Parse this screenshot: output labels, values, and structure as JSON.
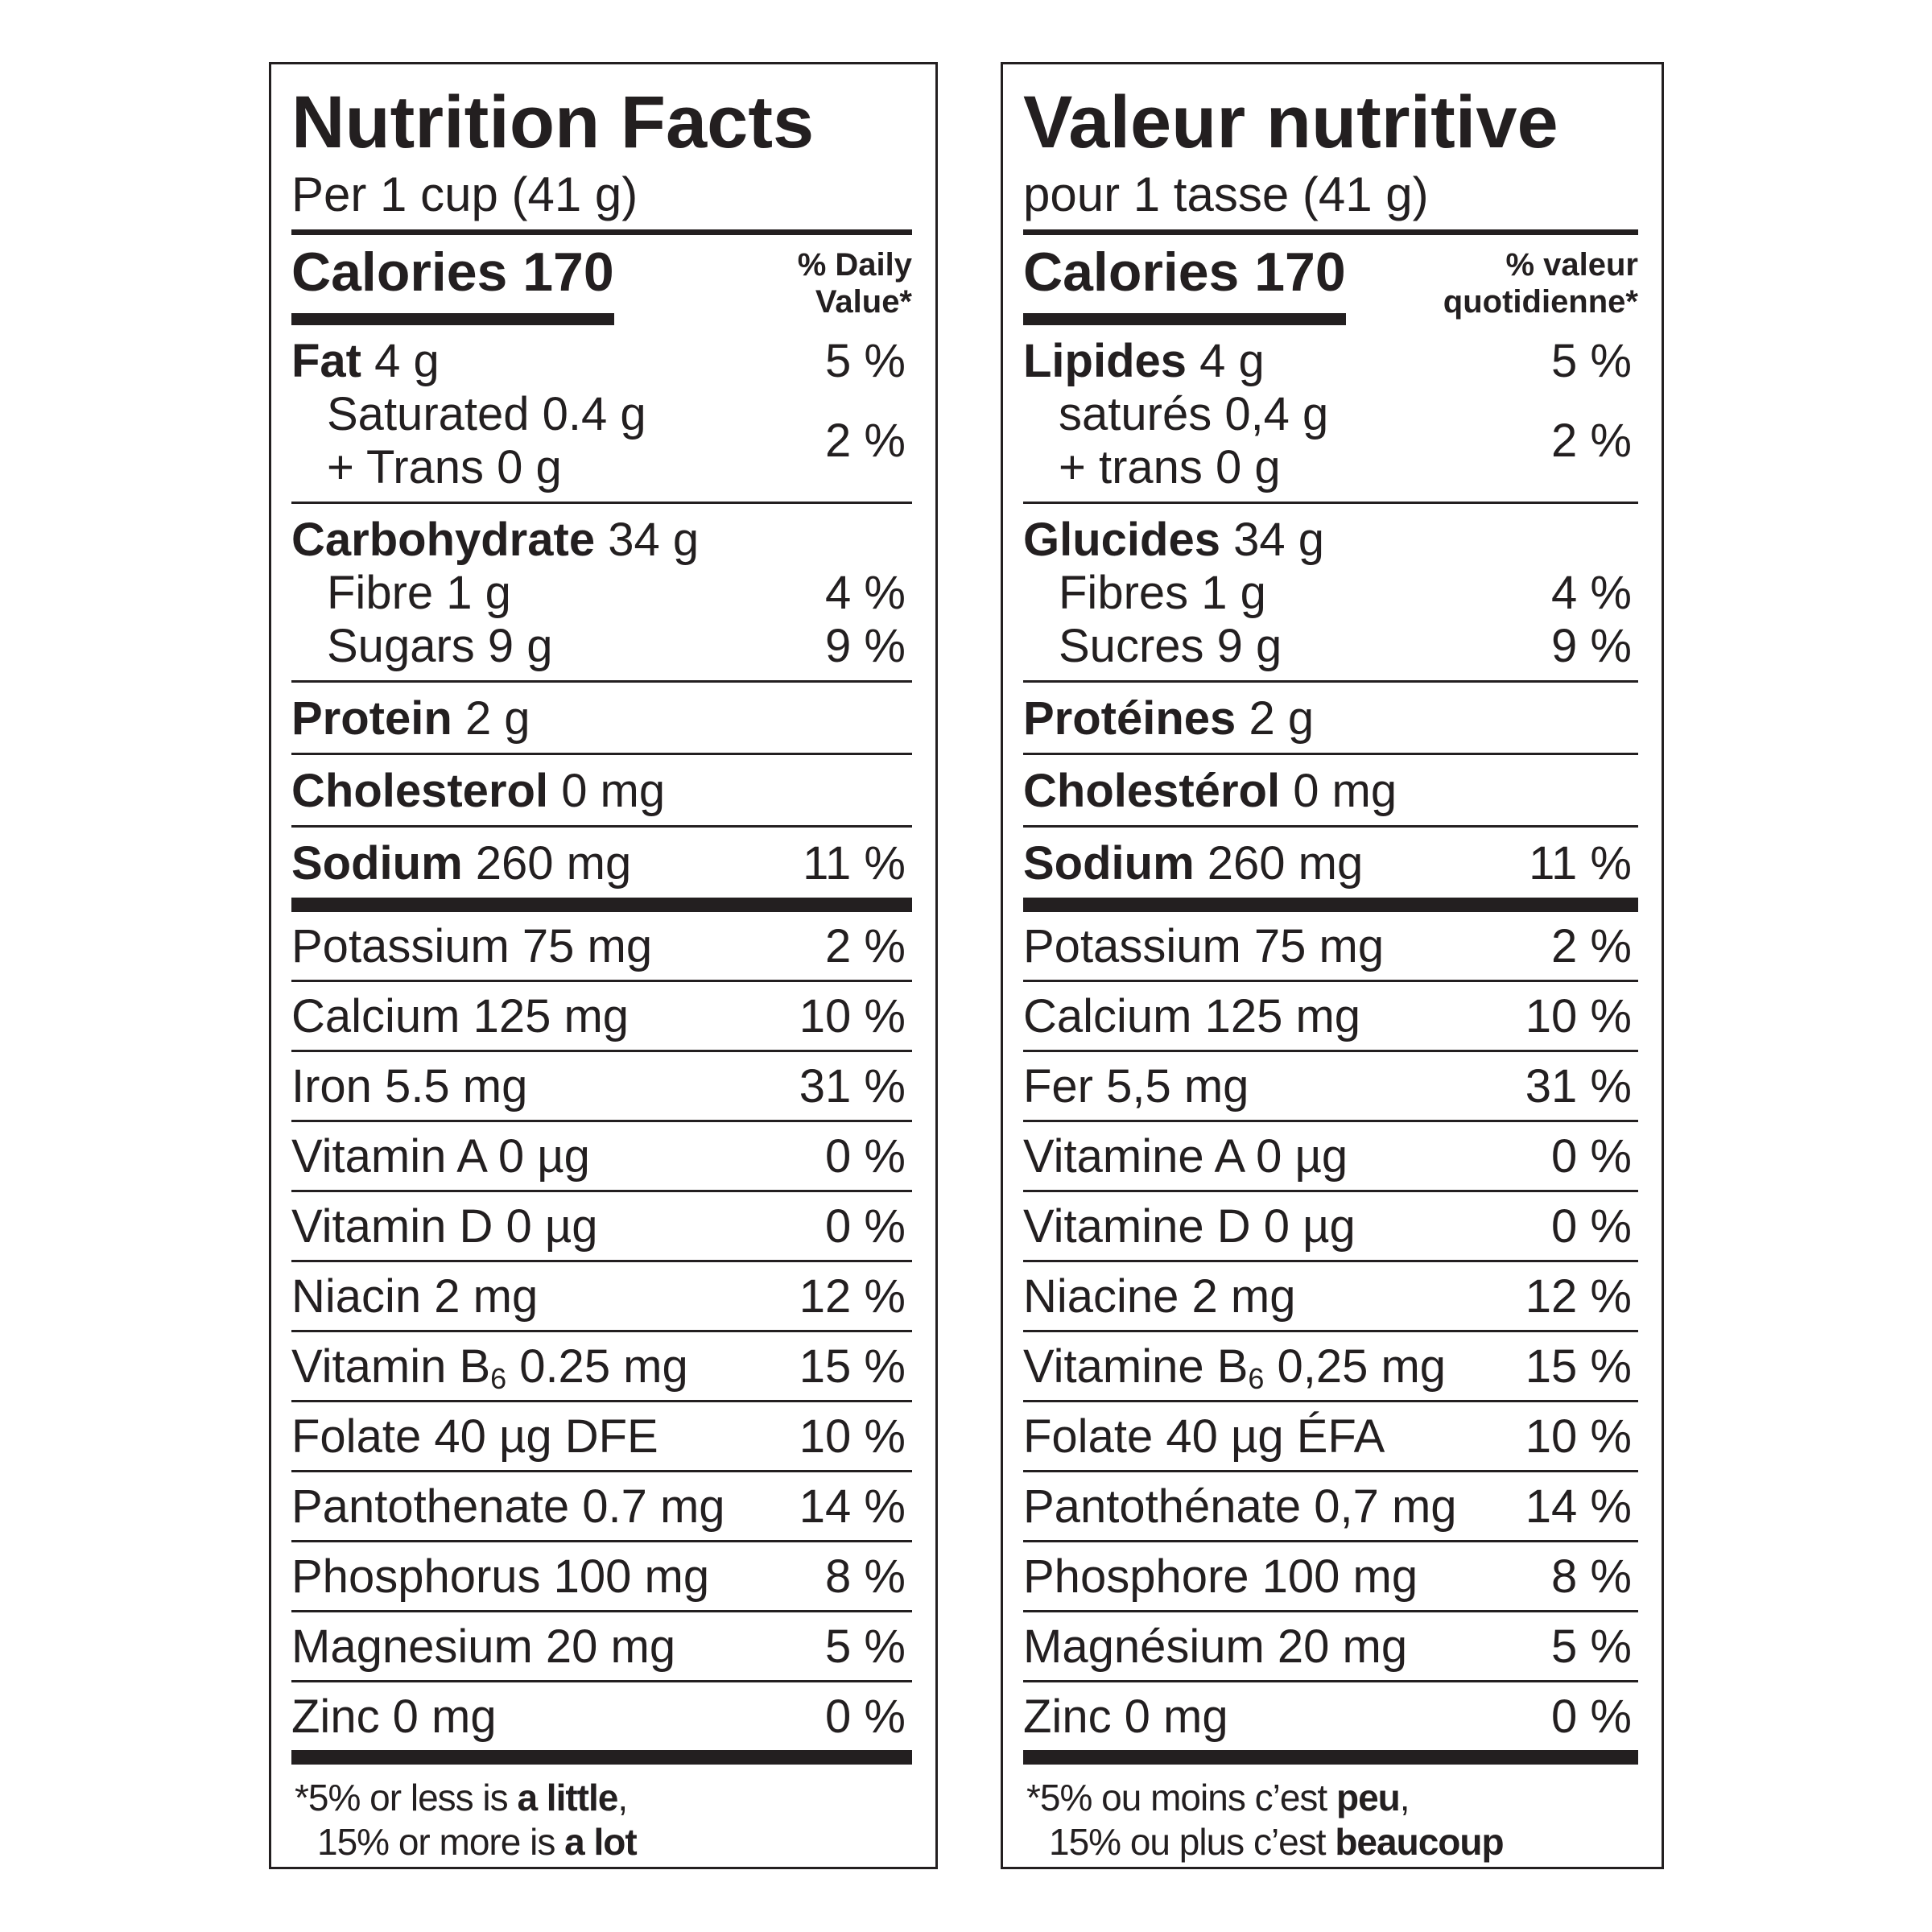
{
  "panels": [
    {
      "title": "Nutrition Facts",
      "serving": "Per 1 cup (41 g)",
      "calories": "Calories 170",
      "dv_header": [
        "% Daily",
        "Value*"
      ],
      "groups": [
        {
          "main": {
            "bold": "Fat",
            "text": "4 g",
            "dv": "5 %"
          },
          "subs": [
            {
              "lines": [
                "Saturated 0.4 g",
                "+ Trans 0 g"
              ],
              "dv": "2 %"
            }
          ]
        },
        {
          "main": {
            "bold": "Carbohydrate",
            "text": "34 g"
          },
          "subs": [
            {
              "lines": [
                "Fibre 1 g"
              ],
              "dv": "4 %"
            },
            {
              "lines": [
                "Sugars 9 g"
              ],
              "dv": "9 %"
            }
          ]
        },
        {
          "main": {
            "bold": "Protein",
            "text": "2 g"
          }
        },
        {
          "main": {
            "bold": "Cholesterol",
            "text": "0 mg"
          }
        },
        {
          "main": {
            "bold": "Sodium",
            "text": "260 mg",
            "dv": "11 %"
          }
        }
      ],
      "minerals": [
        {
          "text": "Potassium 75 mg",
          "dv": "2 %"
        },
        {
          "text": "Calcium 125 mg",
          "dv": "10 %"
        },
        {
          "text": "Iron 5.5 mg",
          "dv": "31 %"
        },
        {
          "text": "Vitamin A 0 µg",
          "dv": "0 %"
        },
        {
          "text": "Vitamin D 0 µg",
          "dv": "0 %"
        },
        {
          "text": "Niacin 2 mg",
          "dv": "12 %"
        },
        {
          "text": "Vitamin B",
          "sub": "6",
          "after": "0.25 mg",
          "dv": "15 %"
        },
        {
          "text": "Folate 40 µg DFE",
          "dv": "10 %"
        },
        {
          "text": "Pantothenate 0.7 mg",
          "dv": "14 %"
        },
        {
          "text": "Phosphorus 100 mg",
          "dv": "8 %"
        },
        {
          "text": "Magnesium 20 mg",
          "dv": "5 %"
        },
        {
          "text": "Zinc 0 mg",
          "dv": "0 %"
        }
      ],
      "footnote": {
        "line1": "*5% or less is",
        "line1_bold": "a little",
        "line1_end": ",",
        "line2": "15% or more is",
        "line2_bold": "a lot"
      }
    },
    {
      "title": "Valeur nutritive",
      "serving": "pour 1 tasse (41 g)",
      "calories": "Calories 170",
      "dv_header": [
        "% valeur",
        "quotidienne*"
      ],
      "groups": [
        {
          "main": {
            "bold": "Lipides",
            "text": "4 g",
            "dv": "5 %"
          },
          "subs": [
            {
              "lines": [
                "saturés 0,4 g",
                "+ trans 0 g"
              ],
              "dv": "2 %"
            }
          ]
        },
        {
          "main": {
            "bold": "Glucides",
            "text": "34 g"
          },
          "subs": [
            {
              "lines": [
                "Fibres 1 g"
              ],
              "dv": "4 %"
            },
            {
              "lines": [
                "Sucres 9 g"
              ],
              "dv": "9 %"
            }
          ]
        },
        {
          "main": {
            "bold": "Protéines",
            "text": "2 g"
          }
        },
        {
          "main": {
            "bold": "Cholestérol",
            "text": "0 mg"
          }
        },
        {
          "main": {
            "bold": "Sodium",
            "text": "260 mg",
            "dv": "11 %"
          }
        }
      ],
      "minerals": [
        {
          "text": "Potassium 75 mg",
          "dv": "2 %"
        },
        {
          "text": "Calcium 125 mg",
          "dv": "10 %"
        },
        {
          "text": "Fer 5,5 mg",
          "dv": "31 %"
        },
        {
          "text": "Vitamine A 0 µg",
          "dv": "0 %"
        },
        {
          "text": "Vitamine D 0 µg",
          "dv": "0 %"
        },
        {
          "text": "Niacine 2 mg",
          "dv": "12 %"
        },
        {
          "text": "Vitamine B",
          "sub": "6",
          "after": "0,25 mg",
          "dv": "15 %"
        },
        {
          "text": "Folate 40 µg ÉFA",
          "dv": "10 %"
        },
        {
          "text": "Pantothénate 0,7 mg",
          "dv": "14 %"
        },
        {
          "text": "Phosphore 100 mg",
          "dv": "8 %"
        },
        {
          "text": "Magnésium 20 mg",
          "dv": "5 %"
        },
        {
          "text": "Zinc 0 mg",
          "dv": "0 %"
        }
      ],
      "footnote": {
        "line1": "*5% ou moins c’est",
        "line1_bold": "peu",
        "line1_end": ",",
        "line2": "15% ou plus c’est",
        "line2_bold": "beaucoup"
      }
    }
  ]
}
